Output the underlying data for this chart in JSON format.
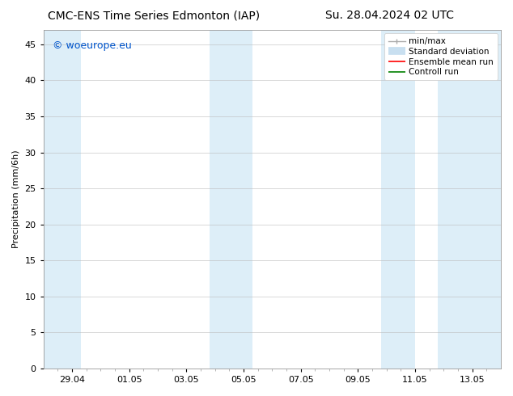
{
  "title_left": "CMC-ENS Time Series Edmonton (IAP)",
  "title_right": "Su. 28.04.2024 02 UTC",
  "ylabel": "Precipitation (mm/6h)",
  "watermark": "© woeurope.eu",
  "watermark_color": "#0055cc",
  "ylim": [
    0,
    47
  ],
  "yticks": [
    0,
    5,
    10,
    15,
    20,
    25,
    30,
    35,
    40,
    45
  ],
  "x_min": 0.0,
  "x_max": 16.0,
  "x_tick_positions": [
    1.0,
    3.0,
    5.0,
    7.0,
    9.0,
    11.0,
    13.0,
    15.0
  ],
  "xlabel_dates": [
    "29.04",
    "01.05",
    "03.05",
    "05.05",
    "07.05",
    "09.05",
    "11.05",
    "13.05"
  ],
  "background_color": "#ffffff",
  "plot_bg_color": "#ffffff",
  "shade_color": "#ddeef8",
  "shade_bands": [
    [
      0.0,
      1.3
    ],
    [
      5.8,
      7.3
    ],
    [
      11.8,
      13.0
    ],
    [
      13.8,
      16.0
    ]
  ],
  "legend_items": [
    {
      "label": "min/max",
      "color": "#aaaaaa",
      "lw": 1.0
    },
    {
      "label": "Standard deviation",
      "color": "#c8dff0",
      "lw": 7
    },
    {
      "label": "Ensemble mean run",
      "color": "#ff0000",
      "lw": 1.2
    },
    {
      "label": "Controll run",
      "color": "#008000",
      "lw": 1.2
    }
  ],
  "title_fontsize": 10,
  "tick_fontsize": 8,
  "ylabel_fontsize": 8,
  "watermark_fontsize": 9,
  "legend_fontsize": 7.5
}
